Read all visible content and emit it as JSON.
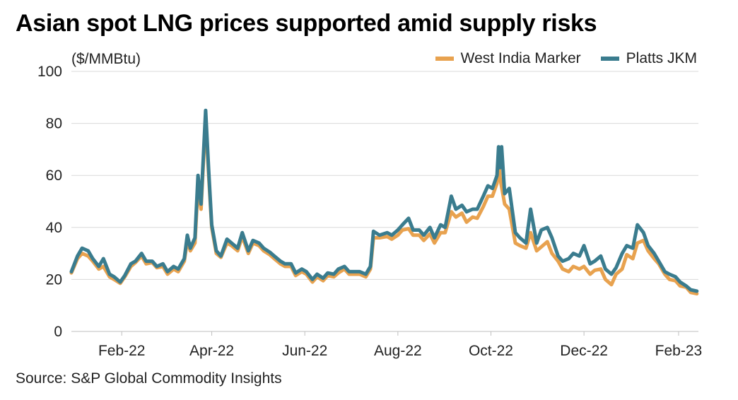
{
  "title": "Asian spot LNG prices supported amid supply risks",
  "source": "Source: S&P Global Commodity Insights",
  "colors": {
    "west_india_marker": "#E8A24F",
    "platts_jkm": "#3A7C8E",
    "grid": "#D9D9D9"
  },
  "chart_data": {
    "type": "line",
    "title": "Asian spot LNG prices supported amid supply risks",
    "ylabel": "($/MMBtu)",
    "xlabel": "",
    "ylim": [
      0,
      100
    ],
    "y_ticks": [
      0,
      20,
      40,
      60,
      80,
      100
    ],
    "x_range": [
      "2021-12-30",
      "2023-02-14"
    ],
    "x_ticks": [
      {
        "date": "2022-02-01",
        "label": "Feb-22"
      },
      {
        "date": "2022-04-01",
        "label": "Apr-22"
      },
      {
        "date": "2022-06-01",
        "label": "Jun-22"
      },
      {
        "date": "2022-08-01",
        "label": "Aug-22"
      },
      {
        "date": "2022-10-01",
        "label": "Oct-22"
      },
      {
        "date": "2022-12-01",
        "label": "Dec-22"
      },
      {
        "date": "2023-02-01",
        "label": "Feb-23"
      }
    ],
    "grid": true,
    "legend_position": "top-right",
    "series": [
      {
        "name": "West India Marker",
        "color": "#E8A24F",
        "points": [
          [
            "2021-12-30",
            22.5
          ],
          [
            "2022-01-03",
            28
          ],
          [
            "2022-01-06",
            30
          ],
          [
            "2022-01-10",
            29
          ],
          [
            "2022-01-13",
            27
          ],
          [
            "2022-01-17",
            24
          ],
          [
            "2022-01-20",
            25
          ],
          [
            "2022-01-24",
            21
          ],
          [
            "2022-01-27",
            20
          ],
          [
            "2022-01-31",
            18.5
          ],
          [
            "2022-02-03",
            21
          ],
          [
            "2022-02-07",
            25
          ],
          [
            "2022-02-10",
            26.5
          ],
          [
            "2022-02-14",
            29
          ],
          [
            "2022-02-17",
            26
          ],
          [
            "2022-02-21",
            26.5
          ],
          [
            "2022-02-24",
            24.5
          ],
          [
            "2022-02-28",
            25
          ],
          [
            "2022-03-03",
            22
          ],
          [
            "2022-03-07",
            24
          ],
          [
            "2022-03-10",
            23
          ],
          [
            "2022-03-14",
            27
          ],
          [
            "2022-03-16",
            35
          ],
          [
            "2022-03-18",
            31
          ],
          [
            "2022-03-21",
            34
          ],
          [
            "2022-03-23",
            56
          ],
          [
            "2022-03-25",
            47
          ],
          [
            "2022-03-28",
            82
          ],
          [
            "2022-03-30",
            60
          ],
          [
            "2022-04-01",
            40
          ],
          [
            "2022-04-04",
            30
          ],
          [
            "2022-04-07",
            28.5
          ],
          [
            "2022-04-11",
            34
          ],
          [
            "2022-04-14",
            33
          ],
          [
            "2022-04-18",
            31
          ],
          [
            "2022-04-21",
            36.5
          ],
          [
            "2022-04-25",
            30
          ],
          [
            "2022-04-28",
            34
          ],
          [
            "2022-05-02",
            33
          ],
          [
            "2022-05-05",
            31
          ],
          [
            "2022-05-09",
            29.5
          ],
          [
            "2022-05-12",
            28
          ],
          [
            "2022-05-16",
            26
          ],
          [
            "2022-05-19",
            25
          ],
          [
            "2022-05-23",
            25
          ],
          [
            "2022-05-26",
            21.5
          ],
          [
            "2022-05-30",
            23
          ],
          [
            "2022-06-02",
            22
          ],
          [
            "2022-06-06",
            19
          ],
          [
            "2022-06-09",
            21
          ],
          [
            "2022-06-13",
            19.5
          ],
          [
            "2022-06-16",
            21.5
          ],
          [
            "2022-06-20",
            21
          ],
          [
            "2022-06-23",
            22.5
          ],
          [
            "2022-06-27",
            24
          ],
          [
            "2022-06-30",
            22
          ],
          [
            "2022-07-04",
            22
          ],
          [
            "2022-07-07",
            22
          ],
          [
            "2022-07-11",
            21
          ],
          [
            "2022-07-14",
            24
          ],
          [
            "2022-07-16",
            36
          ],
          [
            "2022-07-20",
            36
          ],
          [
            "2022-07-25",
            36.5
          ],
          [
            "2022-07-28",
            35.5
          ],
          [
            "2022-08-01",
            37
          ],
          [
            "2022-08-04",
            39
          ],
          [
            "2022-08-08",
            39.5
          ],
          [
            "2022-08-11",
            37
          ],
          [
            "2022-08-15",
            37
          ],
          [
            "2022-08-18",
            35
          ],
          [
            "2022-08-22",
            37.5
          ],
          [
            "2022-08-25",
            34
          ],
          [
            "2022-08-29",
            38
          ],
          [
            "2022-09-01",
            38
          ],
          [
            "2022-09-05",
            46
          ],
          [
            "2022-09-08",
            44
          ],
          [
            "2022-09-12",
            45.5
          ],
          [
            "2022-09-15",
            42
          ],
          [
            "2022-09-19",
            44
          ],
          [
            "2022-09-22",
            43.5
          ],
          [
            "2022-09-26",
            48
          ],
          [
            "2022-09-29",
            52
          ],
          [
            "2022-10-02",
            52
          ],
          [
            "2022-10-05",
            57
          ],
          [
            "2022-10-06",
            66
          ],
          [
            "2022-10-07",
            59
          ],
          [
            "2022-10-10",
            49
          ],
          [
            "2022-10-13",
            47
          ],
          [
            "2022-10-17",
            34
          ],
          [
            "2022-10-20",
            33
          ],
          [
            "2022-10-24",
            32
          ],
          [
            "2022-10-27",
            38
          ],
          [
            "2022-10-31",
            31
          ],
          [
            "2022-11-03",
            32.5
          ],
          [
            "2022-11-07",
            34.5
          ],
          [
            "2022-11-10",
            30
          ],
          [
            "2022-11-14",
            27
          ],
          [
            "2022-11-17",
            24
          ],
          [
            "2022-11-21",
            23
          ],
          [
            "2022-11-24",
            25
          ],
          [
            "2022-11-28",
            24
          ],
          [
            "2022-12-01",
            25
          ],
          [
            "2022-12-05",
            22
          ],
          [
            "2022-12-08",
            23.5
          ],
          [
            "2022-12-12",
            24
          ],
          [
            "2022-12-15",
            20
          ],
          [
            "2022-12-19",
            18
          ],
          [
            "2022-12-22",
            22
          ],
          [
            "2022-12-26",
            24
          ],
          [
            "2022-12-29",
            29.5
          ],
          [
            "2023-01-02",
            28
          ],
          [
            "2023-01-05",
            34
          ],
          [
            "2023-01-09",
            35
          ],
          [
            "2023-01-12",
            31
          ],
          [
            "2023-01-16",
            28
          ],
          [
            "2023-01-19",
            26
          ],
          [
            "2023-01-23",
            22
          ],
          [
            "2023-01-26",
            20
          ],
          [
            "2023-01-30",
            19.5
          ],
          [
            "2023-02-02",
            17.5
          ],
          [
            "2023-02-06",
            17
          ],
          [
            "2023-02-09",
            15
          ],
          [
            "2023-02-13",
            14.5
          ]
        ]
      },
      {
        "name": "Platts JKM",
        "color": "#3A7C8E",
        "points": [
          [
            "2021-12-30",
            23
          ],
          [
            "2022-01-03",
            29
          ],
          [
            "2022-01-06",
            32
          ],
          [
            "2022-01-10",
            31
          ],
          [
            "2022-01-13",
            28
          ],
          [
            "2022-01-17",
            25
          ],
          [
            "2022-01-20",
            28
          ],
          [
            "2022-01-24",
            22
          ],
          [
            "2022-01-27",
            21
          ],
          [
            "2022-01-31",
            19
          ],
          [
            "2022-02-03",
            21.5
          ],
          [
            "2022-02-07",
            26
          ],
          [
            "2022-02-10",
            27
          ],
          [
            "2022-02-14",
            30
          ],
          [
            "2022-02-17",
            27
          ],
          [
            "2022-02-21",
            27
          ],
          [
            "2022-02-24",
            25
          ],
          [
            "2022-02-28",
            26
          ],
          [
            "2022-03-03",
            23
          ],
          [
            "2022-03-07",
            25
          ],
          [
            "2022-03-10",
            24
          ],
          [
            "2022-03-14",
            28
          ],
          [
            "2022-03-16",
            37
          ],
          [
            "2022-03-18",
            32
          ],
          [
            "2022-03-21",
            36
          ],
          [
            "2022-03-23",
            60
          ],
          [
            "2022-03-25",
            49
          ],
          [
            "2022-03-28",
            85
          ],
          [
            "2022-03-30",
            62
          ],
          [
            "2022-04-01",
            41
          ],
          [
            "2022-04-04",
            31
          ],
          [
            "2022-04-07",
            29
          ],
          [
            "2022-04-11",
            35.5
          ],
          [
            "2022-04-14",
            34
          ],
          [
            "2022-04-18",
            32
          ],
          [
            "2022-04-21",
            38
          ],
          [
            "2022-04-25",
            31
          ],
          [
            "2022-04-28",
            35
          ],
          [
            "2022-05-02",
            34
          ],
          [
            "2022-05-05",
            32
          ],
          [
            "2022-05-09",
            30.5
          ],
          [
            "2022-05-12",
            29
          ],
          [
            "2022-05-16",
            27
          ],
          [
            "2022-05-19",
            26
          ],
          [
            "2022-05-23",
            26
          ],
          [
            "2022-05-26",
            22.5
          ],
          [
            "2022-05-30",
            24
          ],
          [
            "2022-06-02",
            23
          ],
          [
            "2022-06-06",
            20
          ],
          [
            "2022-06-09",
            22
          ],
          [
            "2022-06-13",
            20.5
          ],
          [
            "2022-06-16",
            22.5
          ],
          [
            "2022-06-20",
            22
          ],
          [
            "2022-06-23",
            24
          ],
          [
            "2022-06-27",
            25
          ],
          [
            "2022-06-30",
            23
          ],
          [
            "2022-07-04",
            23
          ],
          [
            "2022-07-07",
            23
          ],
          [
            "2022-07-11",
            22
          ],
          [
            "2022-07-14",
            25
          ],
          [
            "2022-07-16",
            38.5
          ],
          [
            "2022-07-20",
            37
          ],
          [
            "2022-07-25",
            38
          ],
          [
            "2022-07-28",
            37
          ],
          [
            "2022-08-01",
            39
          ],
          [
            "2022-08-04",
            41
          ],
          [
            "2022-08-08",
            43.5
          ],
          [
            "2022-08-11",
            39
          ],
          [
            "2022-08-15",
            39
          ],
          [
            "2022-08-18",
            37
          ],
          [
            "2022-08-22",
            40
          ],
          [
            "2022-08-25",
            36
          ],
          [
            "2022-08-29",
            41
          ],
          [
            "2022-09-01",
            40
          ],
          [
            "2022-09-05",
            52
          ],
          [
            "2022-09-08",
            47
          ],
          [
            "2022-09-12",
            48.5
          ],
          [
            "2022-09-15",
            46
          ],
          [
            "2022-09-19",
            47
          ],
          [
            "2022-09-22",
            47
          ],
          [
            "2022-09-26",
            52
          ],
          [
            "2022-09-29",
            56
          ],
          [
            "2022-10-02",
            55
          ],
          [
            "2022-10-05",
            60
          ],
          [
            "2022-10-06",
            71
          ],
          [
            "2022-10-07",
            63
          ],
          [
            "2022-10-08",
            71
          ],
          [
            "2022-10-10",
            53
          ],
          [
            "2022-10-13",
            55
          ],
          [
            "2022-10-17",
            38
          ],
          [
            "2022-10-20",
            36
          ],
          [
            "2022-10-24",
            34
          ],
          [
            "2022-10-27",
            47
          ],
          [
            "2022-10-31",
            34
          ],
          [
            "2022-11-03",
            39
          ],
          [
            "2022-11-07",
            40
          ],
          [
            "2022-11-10",
            36
          ],
          [
            "2022-11-14",
            29
          ],
          [
            "2022-11-17",
            27
          ],
          [
            "2022-11-21",
            28
          ],
          [
            "2022-11-24",
            30
          ],
          [
            "2022-11-28",
            29
          ],
          [
            "2022-12-01",
            33
          ],
          [
            "2022-12-05",
            26
          ],
          [
            "2022-12-08",
            27
          ],
          [
            "2022-12-12",
            29
          ],
          [
            "2022-12-15",
            24
          ],
          [
            "2022-12-19",
            22
          ],
          [
            "2022-12-22",
            24.5
          ],
          [
            "2022-12-26",
            30
          ],
          [
            "2022-12-29",
            33
          ],
          [
            "2023-01-02",
            32
          ],
          [
            "2023-01-05",
            41
          ],
          [
            "2023-01-09",
            38
          ],
          [
            "2023-01-12",
            33
          ],
          [
            "2023-01-16",
            30
          ],
          [
            "2023-01-19",
            27
          ],
          [
            "2023-01-23",
            23
          ],
          [
            "2023-01-26",
            22
          ],
          [
            "2023-01-30",
            21
          ],
          [
            "2023-02-02",
            19
          ],
          [
            "2023-02-06",
            17.5
          ],
          [
            "2023-02-09",
            16
          ],
          [
            "2023-02-13",
            15.5
          ]
        ]
      }
    ]
  }
}
